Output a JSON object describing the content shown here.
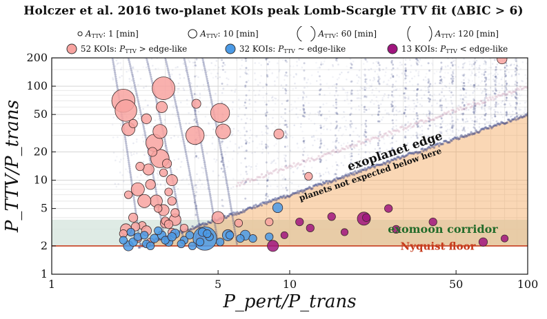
{
  "title": "Holczer et al. 2016 two-planet KOIs peak Lomb-Scargle TTV fit (ΔBIC > 6)",
  "size_legend": [
    {
      "label": "A",
      "sub": "TTV",
      "text": ": 1 [min]",
      "amp": 1
    },
    {
      "label": "A",
      "sub": "TTV",
      "text": ": 10 [min]",
      "amp": 10
    },
    {
      "label": "A",
      "sub": "TTV",
      "text": ": 60 [min]",
      "amp": 60
    },
    {
      "label": "A",
      "sub": "TTV",
      "text": ": 120 [min]",
      "amp": 120
    }
  ],
  "class_legend": [
    {
      "text": "52 KOIs: P",
      "sub": "TTV",
      "tail": " > edge-like",
      "color": "#f8a3a0"
    },
    {
      "text": "32 KOIs: P",
      "sub": "TTV",
      "tail": " ~ edge-like",
      "color": "#4b9ae6"
    },
    {
      "text": "13 KOIs: P",
      "sub": "TTV",
      "tail": " < edge-like",
      "color": "#a0157e"
    }
  ],
  "annotations": {
    "edge": "exoplanet edge",
    "edge_sub": "planets not expected below here",
    "corridor": "exomoon corridor",
    "nyquist": "Nyquist floor"
  },
  "chart_data": {
    "type": "scatter",
    "xscale": "log",
    "yscale": "log",
    "xlim": [
      1,
      100
    ],
    "ylim": [
      1,
      200
    ],
    "xlabel": "P_pert/P_trans",
    "ylabel": "P_TTV/P_trans",
    "xticks": [
      "1",
      "5",
      "10",
      "50",
      "100"
    ],
    "yticks": [
      "1",
      "2",
      "5",
      "10",
      "20",
      "50",
      "100",
      "200"
    ],
    "nyquist_floor": 2,
    "corridor_top": 3.8,
    "edge_line": [
      [
        2.6,
        2.2
      ],
      [
        100,
        50
      ]
    ],
    "series": [
      {
        "name": "52 KOIs: P_TTV > edge-like",
        "color": "#f8a3a0",
        "x": [
          2.0,
          2.05,
          2.1,
          2.95,
          2.9,
          2.2,
          2.85,
          2.3,
          2.6,
          2.75,
          2.95,
          3.0,
          3.2,
          3.3,
          2.4,
          2.5,
          2.25,
          2.15,
          2.05,
          2.0,
          2.7,
          2.85,
          3.05,
          3.2,
          4.05,
          4.0,
          5.1,
          5.25,
          5.0,
          9.0,
          2.1,
          2.2,
          2.45,
          2.55,
          2.8,
          3.3,
          3.0,
          6.1,
          3.6,
          2.35,
          2.5,
          2.65,
          3.1,
          2.6,
          2.3,
          8.2,
          12.0,
          78.0,
          4.2,
          2.95,
          3.1,
          3.2
        ],
        "y": [
          70,
          55,
          35,
          95,
          60,
          40,
          17,
          8,
          9,
          6,
          4.8,
          3.5,
          6,
          3.8,
          3.3,
          2.9,
          3.2,
          2.8,
          3.0,
          2.7,
          25,
          33,
          15,
          10,
          65,
          30,
          52,
          33,
          4,
          31,
          7,
          4,
          6,
          13,
          5,
          4.5,
          3.7,
          3.5,
          3.1,
          14,
          45,
          20,
          3.4,
          2.2,
          2.4,
          3.6,
          11,
          195,
          2.5,
          12,
          7.5,
          2.8
        ],
        "amp": [
          110,
          95,
          30,
          105,
          20,
          10,
          65,
          30,
          15,
          25,
          20,
          15,
          10,
          22,
          8,
          15,
          10,
          8,
          20,
          8,
          55,
          35,
          12,
          20,
          12,
          65,
          70,
          40,
          25,
          15,
          8,
          12,
          30,
          20,
          8,
          10,
          8,
          8,
          8,
          10,
          15,
          12,
          10,
          8,
          8,
          8,
          8,
          15,
          10,
          8,
          8,
          8
        ]
      },
      {
        "name": "32 KOIs: P_TTV ~ edge-like",
        "color": "#4b9ae6",
        "x": [
          4.4,
          5.5,
          6.5,
          8.9,
          2.1,
          2.2,
          2.3,
          2.5,
          2.7,
          2.9,
          3.1,
          3.3,
          3.6,
          3.9,
          4.3,
          4.6,
          5.1,
          5.6,
          6.2,
          2.0,
          2.15,
          2.45,
          2.6,
          2.8,
          3.0,
          3.2,
          3.5,
          3.8,
          4.2,
          4.5,
          7.0,
          8.2
        ],
        "y": [
          2.4,
          2.6,
          2.6,
          5.1,
          2.0,
          2.2,
          2.5,
          2.1,
          2.4,
          2.6,
          2.2,
          2.7,
          2.3,
          2.0,
          2.8,
          2.5,
          2.2,
          2.6,
          2.4,
          2.3,
          2.8,
          2.6,
          2.0,
          2.9,
          2.3,
          2.5,
          2.1,
          2.6,
          2.2,
          2.7,
          2.4,
          2.5
        ],
        "amp": [
          115,
          20,
          15,
          15,
          15,
          10,
          8,
          8,
          10,
          10,
          10,
          12,
          8,
          8,
          10,
          8,
          8,
          8,
          8,
          8,
          8,
          8,
          8,
          8,
          8,
          10,
          8,
          8,
          8,
          8,
          8,
          8
        ]
      },
      {
        "name": "13 KOIs: P_TTV < edge-like",
        "color": "#a0157e",
        "x": [
          8.5,
          11.0,
          12.2,
          15.0,
          20.5,
          26.0,
          28.0,
          21.0,
          40.0,
          65.0,
          80.0,
          9.5,
          17.0
        ],
        "y": [
          2.0,
          3.6,
          3.1,
          4.1,
          3.9,
          5.0,
          3.0,
          4.0,
          3.6,
          2.2,
          2.4,
          2.6,
          2.8
        ],
        "amp": [
          20,
          8,
          8,
          8,
          30,
          8,
          8,
          8,
          8,
          10,
          6,
          6,
          6
        ]
      }
    ]
  }
}
